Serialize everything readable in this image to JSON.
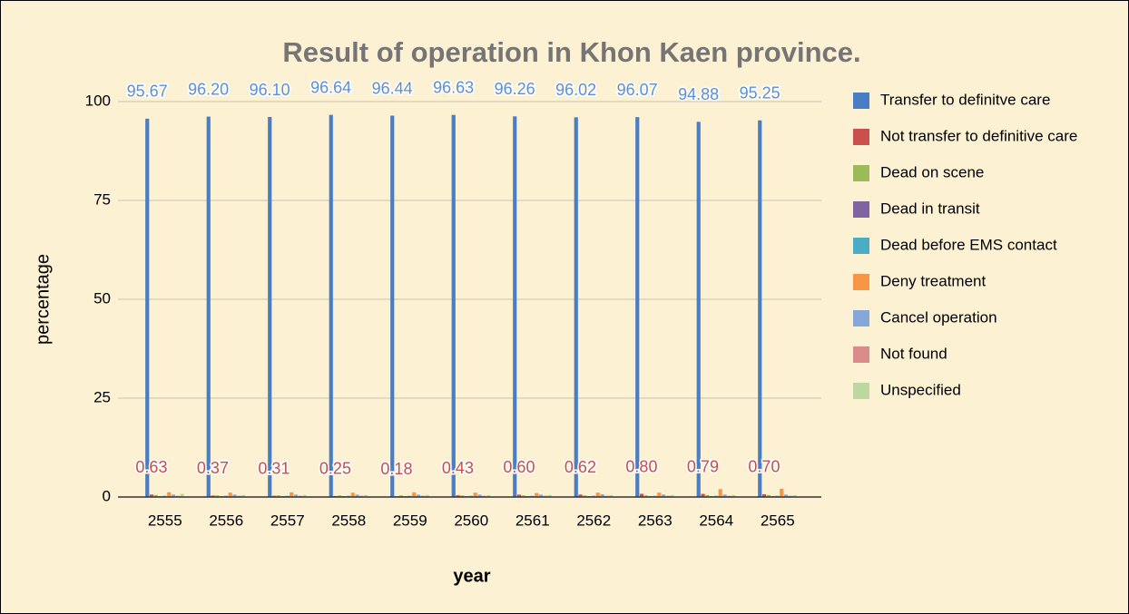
{
  "chart_data": {
    "type": "bar",
    "title": "Result of operation in Khon Kaen province.",
    "x_label": "year",
    "y_label": "percentage",
    "categories": [
      "2555",
      "2556",
      "2557",
      "2558",
      "2559",
      "2560",
      "2561",
      "2562",
      "2563",
      "2564",
      "2565"
    ],
    "series": [
      {
        "name": "Transfer to definitve care",
        "color": "#4a7ec4",
        "label_color": "#5b8fd3",
        "values": [
          95.67,
          96.2,
          96.1,
          96.64,
          96.44,
          96.63,
          96.26,
          96.02,
          96.07,
          94.88,
          95.25
        ],
        "value_labels": [
          "95.67",
          "96.20",
          "96.10",
          "96.64",
          "96.44",
          "96.63",
          "96.26",
          "96.02",
          "96.07",
          "94.88",
          "95.25"
        ]
      },
      {
        "name": "Not transfer to definitive care",
        "color": "#c9504d",
        "label_color": "#c0504d",
        "values": [
          0.63,
          0.37,
          0.31,
          0.25,
          0.18,
          0.43,
          0.6,
          0.62,
          0.8,
          0.79,
          0.7
        ],
        "value_labels": [
          "0.63",
          "0.37",
          "0.31",
          "0.25",
          "0.18",
          "0.43",
          "0.60",
          "0.62",
          "0.80",
          "0.79",
          "0.70"
        ]
      },
      {
        "name": "Dead on scene",
        "color": "#9bbb59",
        "values": [
          0.5,
          0.4,
          0.4,
          0.4,
          0.4,
          0.4,
          0.4,
          0.4,
          0.4,
          0.5,
          0.5
        ]
      },
      {
        "name": "Dead in transit",
        "color": "#8064a2",
        "values": [
          0.2,
          0.2,
          0.2,
          0.2,
          0.2,
          0.2,
          0.2,
          0.2,
          0.2,
          0.2,
          0.2
        ]
      },
      {
        "name": "Dead before EMS contact",
        "color": "#4bacc6",
        "values": [
          0.3,
          0.3,
          0.3,
          0.3,
          0.3,
          0.3,
          0.3,
          0.3,
          0.3,
          0.3,
          0.3
        ]
      },
      {
        "name": "Deny treatment",
        "color": "#f79646",
        "values": [
          1.2,
          1.1,
          1.2,
          1.1,
          1.2,
          1.1,
          1.0,
          1.1,
          1.1,
          2.0,
          2.1
        ]
      },
      {
        "name": "Cancel operation",
        "color": "#86a8d9",
        "values": [
          0.6,
          0.6,
          0.6,
          0.6,
          0.6,
          0.6,
          0.6,
          0.7,
          0.6,
          0.6,
          0.6
        ]
      },
      {
        "name": "Not found",
        "color": "#d98c8b",
        "values": [
          0.3,
          0.3,
          0.3,
          0.3,
          0.3,
          0.3,
          0.3,
          0.3,
          0.3,
          0.3,
          0.3
        ]
      },
      {
        "name": "Unspecified",
        "color": "#bcd89e",
        "values": [
          0.8,
          0.5,
          0.5,
          0.5,
          0.5,
          0.5,
          0.5,
          0.5,
          0.5,
          0.5,
          0.5
        ]
      }
    ],
    "ylim": [
      0,
      100
    ],
    "yticks": [
      0,
      25,
      50,
      75,
      100
    ],
    "grid": true,
    "legend": "right"
  }
}
